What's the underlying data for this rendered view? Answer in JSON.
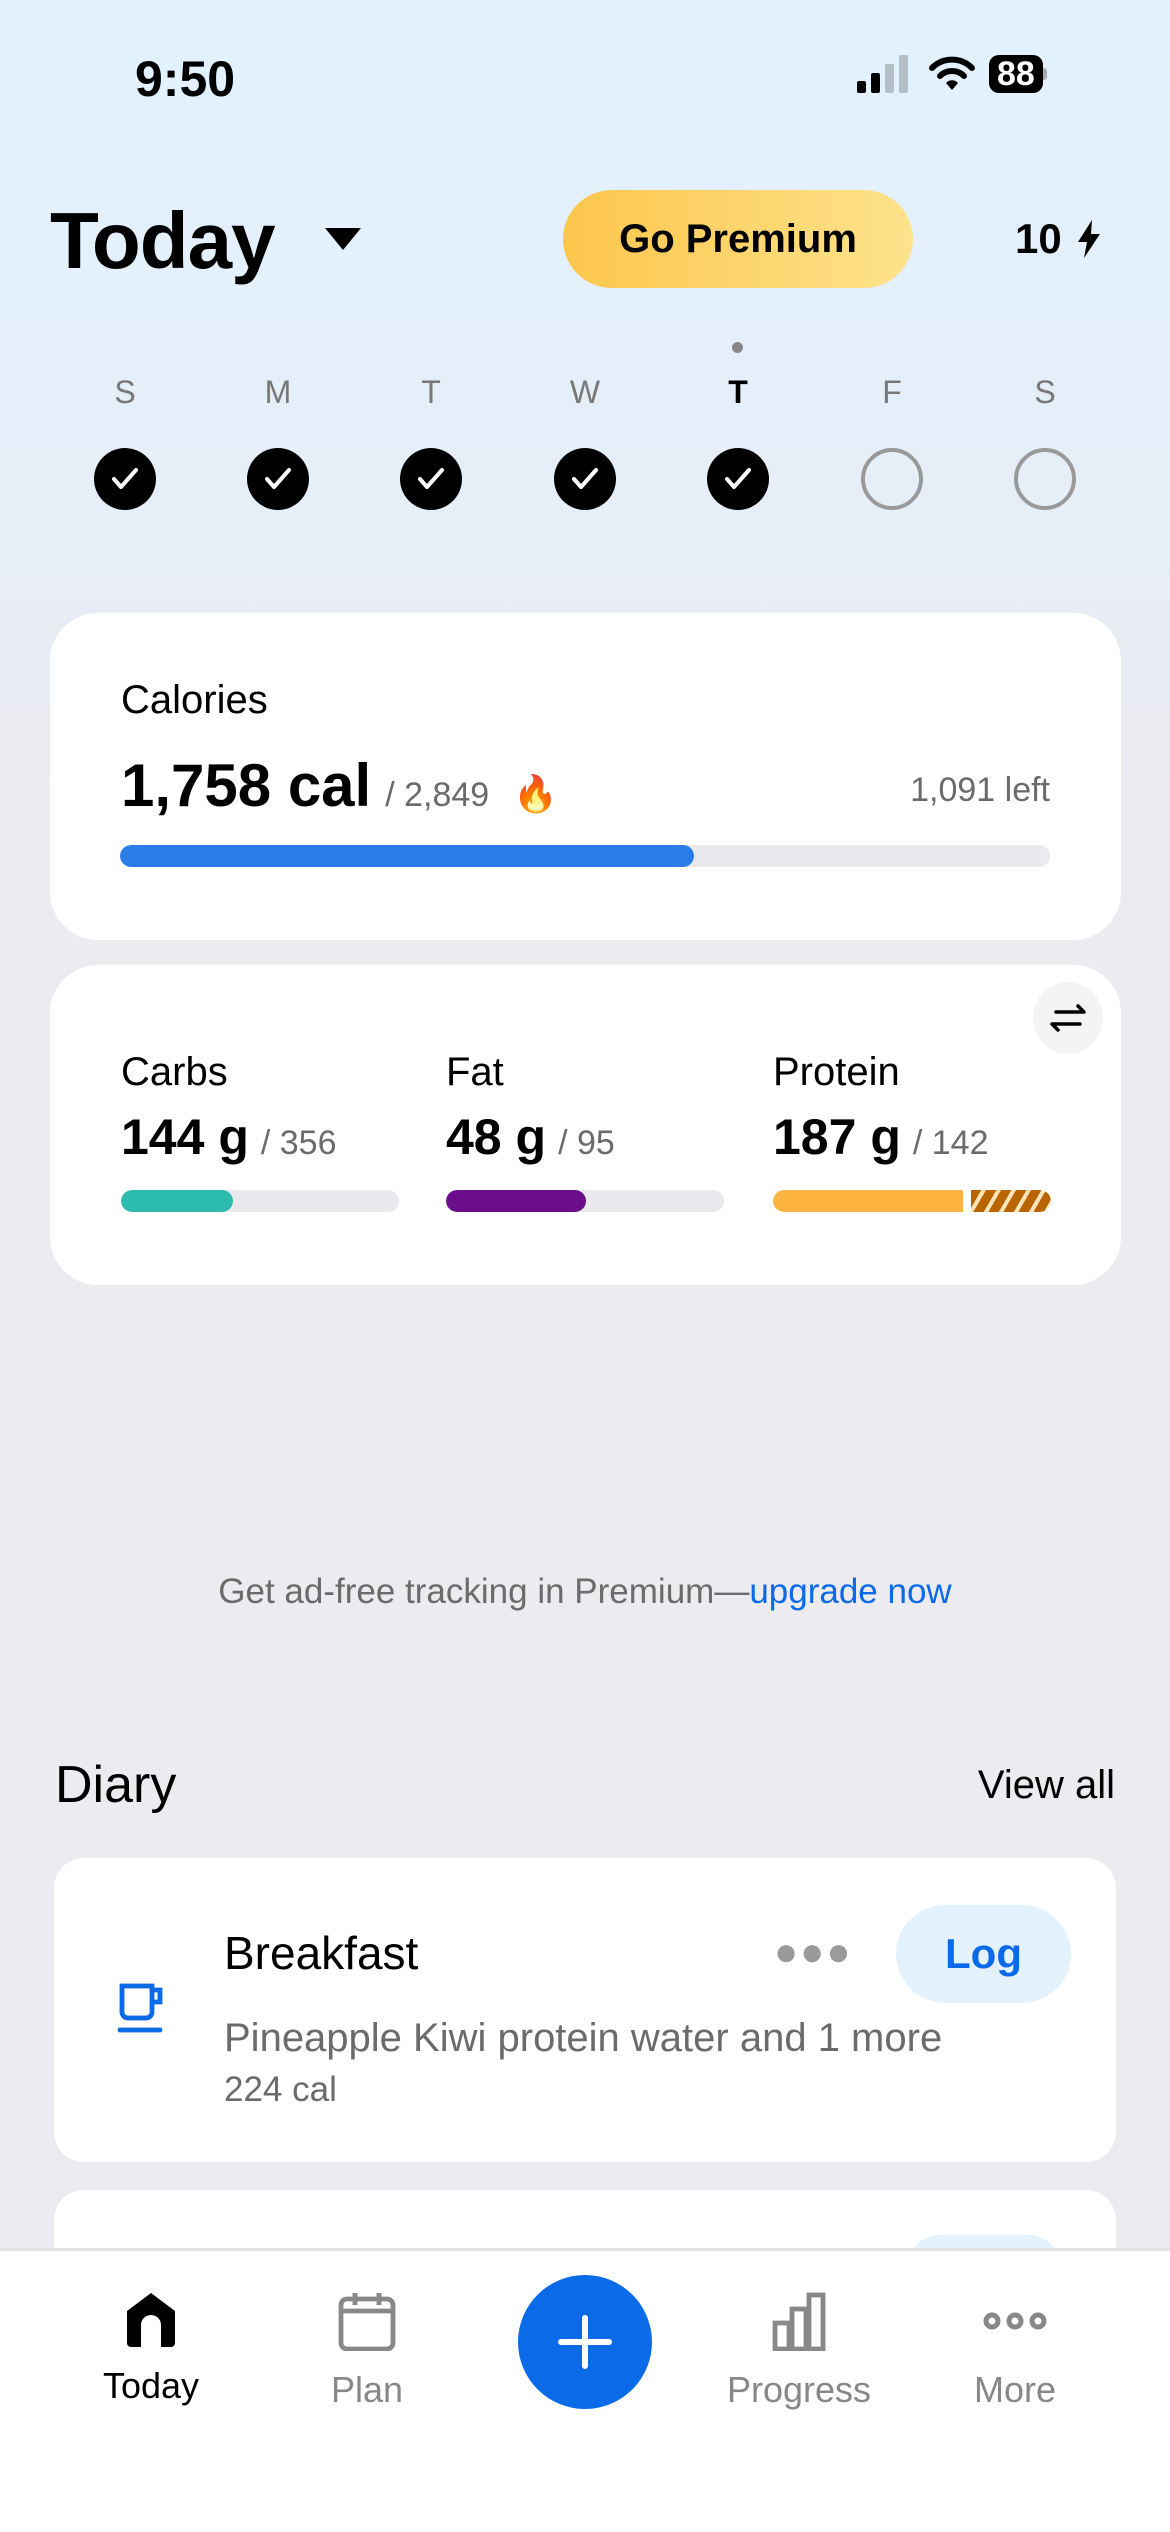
{
  "status": {
    "time": "9:50",
    "battery": "88"
  },
  "header": {
    "title": "Today",
    "premium_label": "Go Premium",
    "streak": "10",
    "streak_icon": "bolt-icon"
  },
  "week": [
    {
      "label": "S",
      "done": true
    },
    {
      "label": "M",
      "done": true
    },
    {
      "label": "T",
      "done": true
    },
    {
      "label": "W",
      "done": true
    },
    {
      "label": "T",
      "done": true,
      "current": true
    },
    {
      "label": "F",
      "done": false
    },
    {
      "label": "S",
      "done": false
    }
  ],
  "calories": {
    "title": "Calories",
    "value": "1,758 cal",
    "goal": "/ 2,849",
    "left": "1,091 left",
    "progress": 0.617,
    "color": "#2a7de9"
  },
  "macros": [
    {
      "name": "Carbs",
      "value": "144 g",
      "goal": "/ 356",
      "progress": 0.404,
      "color": "#2ebbaf"
    },
    {
      "name": "Fat",
      "value": "48 g",
      "goal": "/ 95",
      "progress": 0.505,
      "color": "#6b0e8c"
    },
    {
      "name": "Protein",
      "value": "187 g",
      "goal": "/ 142",
      "progress": 1.0,
      "over": true,
      "color": "#fdb441",
      "over_color": "#b86400"
    }
  ],
  "promo": {
    "text": "Get ad-free tracking in Premium—",
    "link": "upgrade now"
  },
  "diary": {
    "title": "Diary",
    "view_all": "View all",
    "meals": [
      {
        "name": "Breakfast",
        "items": "Pineapple Kiwi protein water and 1 more",
        "cal": "224 cal",
        "log_label": "Log",
        "icon": "coffee-cup-icon"
      }
    ]
  },
  "tabs": [
    {
      "label": "Today",
      "icon": "home-icon",
      "active": true
    },
    {
      "label": "Plan",
      "icon": "calendar-icon"
    },
    {
      "label": "Progress",
      "icon": "bar-chart-icon"
    },
    {
      "label": "More",
      "icon": "more-icon"
    }
  ],
  "colors": {
    "accent": "#0a6ae8",
    "premium": "#fdc64c"
  }
}
